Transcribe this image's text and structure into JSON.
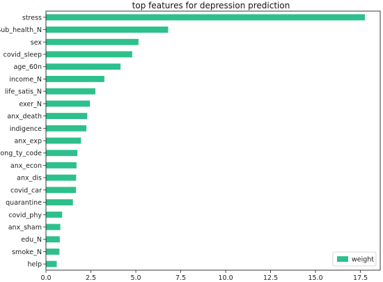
{
  "chart_data": {
    "type": "bar",
    "orientation": "horizontal",
    "title": "top features for depression prediction",
    "xlabel": "",
    "ylabel": "",
    "categories": [
      "stress",
      "Sub_health_N",
      "sex",
      "covid_sleep",
      "age_60n",
      "income_N",
      "life_satis_N",
      "exer_N",
      "anx_death",
      "indigence",
      "anx_exp",
      "dong_ty_code",
      "anx_econ",
      "anx_dis",
      "covid_car",
      "quarantine",
      "covid_phy",
      "anx_sham",
      "edu_N",
      "smoke_N",
      "help"
    ],
    "series": [
      {
        "name": "weight",
        "values": [
          17.75,
          6.8,
          5.15,
          4.8,
          4.15,
          3.25,
          2.75,
          2.45,
          2.3,
          2.25,
          1.95,
          1.75,
          1.7,
          1.68,
          1.67,
          1.5,
          0.9,
          0.8,
          0.77,
          0.75,
          0.6
        ]
      }
    ],
    "xlim": [
      0,
      18.6
    ],
    "xticks": [
      "0.0",
      "2.5",
      "5.0",
      "7.5",
      "10.0",
      "12.5",
      "15.0",
      "17.5"
    ],
    "grid": false,
    "legend_position": "lower-right",
    "colors": {
      "bar": "#2ec08c"
    }
  }
}
